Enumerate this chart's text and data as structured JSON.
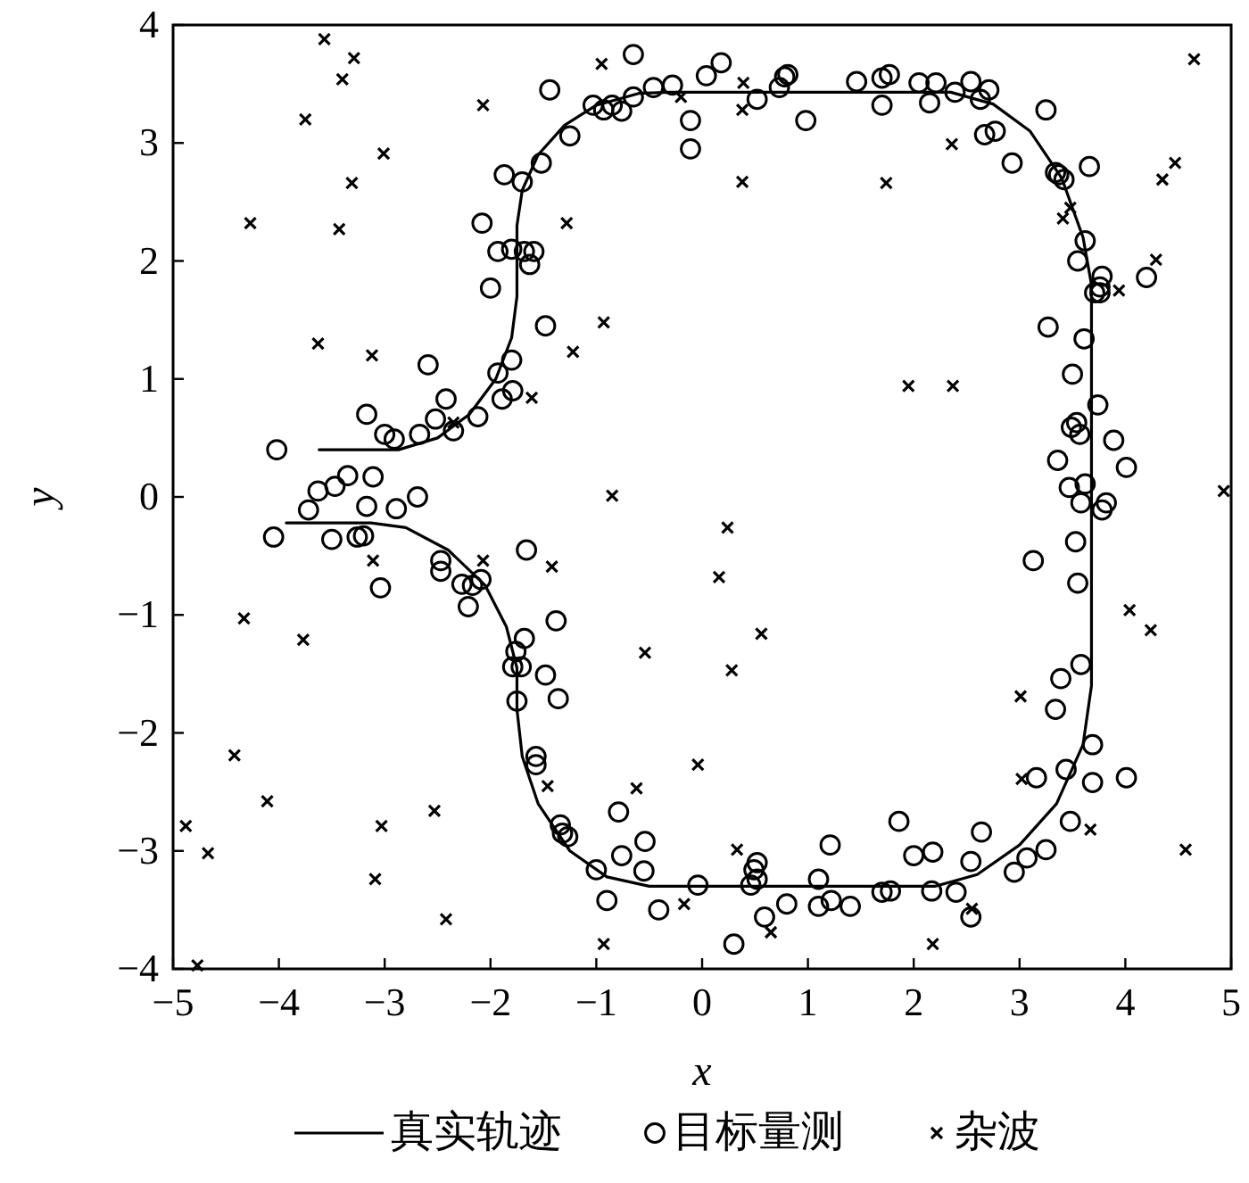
{
  "chart_data": {
    "type": "scatter",
    "xlabel": "x",
    "ylabel": "y",
    "xlim": [
      -5,
      5
    ],
    "ylim": [
      -4,
      4
    ],
    "xticks": [
      -5,
      -4,
      -3,
      -2,
      -1,
      0,
      1,
      2,
      3,
      4,
      5
    ],
    "yticks": [
      -4,
      -3,
      -2,
      -1,
      0,
      1,
      2,
      3,
      4
    ],
    "legend": "bottom",
    "series": [
      {
        "name": "真实轨迹",
        "type": "line",
        "color": "#000000",
        "marker": "none",
        "line_style": "solid",
        "x": [
          -3.62,
          -2.87,
          -2.5,
          -2.2,
          -1.95,
          -1.8,
          -1.75,
          -1.75,
          -1.7,
          -1.55,
          -1.3,
          -1.0,
          -0.6,
          -0.3,
          2.35,
          2.75,
          3.1,
          3.4,
          3.6,
          3.68,
          3.68,
          3.6,
          3.35,
          3.0,
          2.6,
          2.2,
          -0.5,
          -0.9,
          -1.25,
          -1.55,
          -1.7,
          -1.75,
          -1.75,
          -1.85,
          -2.05,
          -2.4,
          -2.8,
          -3.13,
          -3.93
        ],
        "values": [
          0.4,
          0.4,
          0.5,
          0.7,
          1.0,
          1.35,
          1.7,
          2.3,
          2.6,
          2.9,
          3.15,
          3.32,
          3.42,
          3.43,
          3.43,
          3.33,
          3.1,
          2.7,
          2.2,
          1.8,
          -1.6,
          -2.1,
          -2.6,
          -2.95,
          -3.2,
          -3.3,
          -3.3,
          -3.22,
          -3.0,
          -2.6,
          -2.2,
          -1.8,
          -1.45,
          -1.1,
          -0.75,
          -0.45,
          -0.26,
          -0.22,
          -0.22
        ]
      },
      {
        "name": "目标量测",
        "type": "scatter",
        "color": "#000000",
        "marker": "circle",
        "x": [
          -0.65,
          -1.44,
          -1.03,
          -0.93,
          -0.85,
          -0.76,
          -0.65,
          -0.46,
          -0.28,
          0.04,
          -0.11,
          -0.11,
          -1.25,
          -1.52,
          -1.87,
          -1.7,
          -2.08,
          -1.93,
          -1.8,
          -1.68,
          -1.59,
          -1.63,
          -2.0,
          -1.48,
          -1.8,
          -1.93,
          -1.79,
          -1.89,
          -2.59,
          -2.42,
          -2.12,
          -2.52,
          -2.35,
          -2.67,
          -3.17,
          -3.0,
          -2.91,
          -4.02,
          -3.35,
          -3.47,
          -3.63,
          -3.11,
          -2.69,
          -3.72,
          -4.05,
          -3.5,
          -3.26,
          -3.2,
          -3.17,
          -2.89,
          -3.04,
          -2.47,
          -2.47,
          -2.27,
          -2.17,
          -2.09,
          -2.21,
          -1.66,
          -1.38,
          -1.68,
          -1.76,
          -1.79,
          -1.71,
          -1.48,
          -1.36,
          -1.75,
          -1.57,
          -1.57,
          -1.34,
          -1.32,
          -1.27,
          -1.0,
          -0.79,
          -0.76,
          -0.54,
          -0.55,
          -0.9,
          -0.41,
          -0.04,
          0.3,
          0.46,
          0.52,
          0.49,
          0.52,
          0.59,
          0.8,
          1.21,
          1.1,
          1.1,
          1.22,
          1.4,
          1.7,
          1.78,
          1.86,
          2.0,
          2.18,
          2.17,
          2.4,
          2.54,
          2.54,
          2.64,
          2.95,
          3.07,
          3.25,
          3.48,
          3.16,
          3.44,
          3.69,
          3.69,
          4.01,
          3.34,
          3.39,
          3.58,
          3.13,
          3.53,
          3.55,
          3.47,
          3.62,
          3.58,
          3.82,
          3.78,
          0.18,
          0.52,
          0.73,
          0.78,
          0.81,
          0.98,
          1.46,
          1.7,
          1.77,
          1.7,
          2.05,
          2.21,
          2.15,
          2.39,
          2.54,
          2.63,
          2.71,
          2.67,
          2.77,
          3.25,
          2.93,
          3.34,
          3.37,
          3.42,
          3.66,
          3.62,
          3.55,
          3.78,
          3.76,
          3.71,
          3.76,
          4.2,
          3.27,
          3.61,
          3.5,
          3.74,
          3.54,
          3.49,
          3.57,
          3.89,
          3.36,
          4.01
        ],
        "values": [
          3.75,
          3.45,
          3.32,
          3.28,
          3.32,
          3.27,
          3.39,
          3.47,
          3.49,
          3.57,
          3.19,
          2.95,
          3.06,
          2.83,
          2.73,
          2.67,
          2.32,
          2.08,
          2.1,
          2.08,
          2.08,
          1.97,
          1.77,
          1.45,
          1.16,
          1.05,
          0.9,
          0.83,
          1.12,
          0.83,
          0.68,
          0.66,
          0.56,
          0.53,
          0.7,
          0.53,
          0.49,
          0.4,
          0.18,
          0.09,
          0.05,
          0.17,
          0.0,
          -0.11,
          -0.34,
          -0.36,
          -0.34,
          -0.33,
          -0.08,
          -0.1,
          -0.77,
          -0.54,
          -0.63,
          -0.74,
          -0.75,
          -0.7,
          -0.93,
          -0.45,
          -1.05,
          -1.2,
          -1.31,
          -1.44,
          -1.44,
          -1.51,
          -1.71,
          -1.73,
          -2.2,
          -2.27,
          -2.78,
          -2.85,
          -2.88,
          -3.16,
          -2.67,
          -3.04,
          -2.92,
          -3.17,
          -3.42,
          -3.5,
          -3.29,
          -3.79,
          -3.29,
          -3.24,
          -3.16,
          -3.1,
          -3.56,
          -3.45,
          -2.95,
          -3.24,
          -3.47,
          -3.42,
          -3.47,
          -3.35,
          -3.34,
          -2.75,
          -3.04,
          -3.01,
          -3.34,
          -3.35,
          -3.56,
          -3.09,
          -2.84,
          -3.18,
          -3.06,
          -2.99,
          -2.75,
          -2.38,
          -2.31,
          -2.1,
          -2.42,
          -2.38,
          -1.8,
          -1.54,
          -1.42,
          -0.54,
          -0.38,
          -0.73,
          0.08,
          0.11,
          -0.05,
          -0.05,
          -0.11,
          3.68,
          3.37,
          3.47,
          3.56,
          3.58,
          3.19,
          3.52,
          3.55,
          3.58,
          3.32,
          3.51,
          3.51,
          3.34,
          3.43,
          3.52,
          3.37,
          3.45,
          3.07,
          3.1,
          3.28,
          2.83,
          2.75,
          2.73,
          2.69,
          2.8,
          2.17,
          2.0,
          1.87,
          1.78,
          1.73,
          1.73,
          1.86,
          1.44,
          1.34,
          1.04,
          0.78,
          0.63,
          0.59,
          0.53,
          0.48,
          0.31,
          0.25
        ]
      },
      {
        "name": "杂波",
        "type": "scatter",
        "color": "#000000",
        "marker": "cross",
        "x": [
          -3.57,
          -3.29,
          -3.4,
          -3.75,
          -3.01,
          -3.31,
          -4.27,
          -3.43,
          -2.07,
          -0.95,
          -0.2,
          -1.28,
          -0.93,
          -1.22,
          -3.63,
          -3.12,
          -1.61,
          -2.35,
          -0.85,
          0.39,
          0.38,
          0.38,
          1.74,
          2.36,
          4.65,
          4.35,
          4.47,
          3.41,
          3.48,
          4.29,
          3.94,
          1.95,
          2.37,
          4.93,
          -3.11,
          -2.07,
          -1.42,
          -4.33,
          -3.77,
          -0.54,
          -4.42,
          -4.11,
          -1.46,
          -0.62,
          -0.04,
          -4.88,
          -4.67,
          -3.03,
          -2.53,
          -3.09,
          -2.42,
          -0.17,
          -0.93,
          -4.77,
          0.24,
          0.16,
          0.56,
          0.28,
          3.01,
          3.02,
          3.67,
          4.04,
          4.24,
          4.57,
          0.33,
          0.65,
          2.18,
          2.55
        ],
        "values": [
          3.88,
          3.72,
          3.54,
          3.2,
          2.91,
          2.66,
          2.32,
          2.27,
          3.32,
          3.67,
          3.39,
          2.32,
          1.48,
          1.23,
          1.3,
          1.2,
          0.84,
          0.63,
          0.01,
          3.51,
          3.28,
          2.67,
          2.66,
          2.99,
          3.71,
          2.69,
          2.83,
          2.36,
          2.45,
          2.01,
          1.75,
          0.94,
          0.94,
          0.05,
          -0.54,
          -0.54,
          -0.59,
          -1.03,
          -1.21,
          -1.32,
          -2.19,
          -2.58,
          -2.45,
          -2.47,
          -2.27,
          -2.79,
          -3.02,
          -2.79,
          -2.66,
          -3.24,
          -3.58,
          -3.45,
          -3.79,
          -3.97,
          -0.26,
          -0.68,
          -1.16,
          -1.47,
          -1.69,
          -2.39,
          -2.82,
          -0.96,
          -1.13,
          -2.99,
          -2.99,
          -3.69,
          -3.79,
          -3.49
        ]
      }
    ]
  }
}
